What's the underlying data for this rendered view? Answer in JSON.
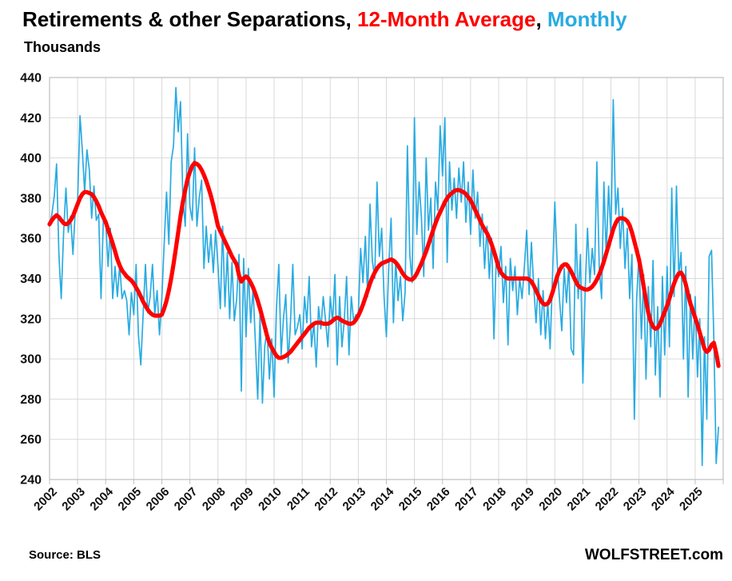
{
  "title": {
    "segments": [
      {
        "text": "Retirements & other Separations, ",
        "color": "#000000"
      },
      {
        "text": "12-Month Average",
        "color": "#ff0000"
      },
      {
        "text": ", ",
        "color": "#000000"
      },
      {
        "text": "Monthly",
        "color": "#29abe2"
      }
    ]
  },
  "subtitle": "Thousands",
  "footer": {
    "source": "Source: BLS",
    "watermark": "WOLFSTREET.com"
  },
  "colors": {
    "grid": "#d9d9d9",
    "border": "#bfbfbf",
    "background": "#ffffff"
  },
  "chart_data": {
    "type": "line",
    "title": "Retirements & other Separations, 12-Month Average, Monthly",
    "ylabel": "Thousands",
    "ylim": [
      240,
      440
    ],
    "ytick_step": 20,
    "yticks": [
      240,
      260,
      280,
      300,
      320,
      340,
      360,
      380,
      400,
      420,
      440
    ],
    "xticks": [
      2002,
      2003,
      2004,
      2005,
      2006,
      2007,
      2008,
      2009,
      2010,
      2011,
      2012,
      2013,
      2014,
      2015,
      2016,
      2017,
      2018,
      2019,
      2020,
      2021,
      2022,
      2023,
      2024,
      2025
    ],
    "x_start_year": 2002,
    "x_frequency": "monthly",
    "grid": true,
    "legend_position": "in-title",
    "series": [
      {
        "name": "Monthly",
        "color": "#29abe2",
        "width": 1.7,
        "values": [
          366,
          372,
          381,
          397,
          352,
          330,
          363,
          385,
          363,
          371,
          352,
          374,
          378,
          421,
          404,
          383,
          404,
          394,
          370,
          386,
          369,
          372,
          330,
          369,
          369,
          346,
          365,
          330,
          346,
          331,
          347,
          330,
          334,
          329,
          312,
          333,
          322,
          347,
          312,
          297,
          322,
          347,
          323,
          331,
          347,
          322,
          334,
          312,
          330,
          357,
          383,
          357,
          398,
          406,
          435,
          413,
          428,
          380,
          366,
          412,
          376,
          369,
          405,
          366,
          380,
          389,
          345,
          366,
          348,
          362,
          343,
          364,
          346,
          325,
          366,
          326,
          353,
          320,
          348,
          319,
          330,
          352,
          284,
          350,
          311,
          345,
          318,
          335,
          308,
          280,
          322,
          278,
          306,
          315,
          290,
          310,
          281,
          325,
          347,
          302,
          320,
          332,
          298,
          318,
          347,
          312,
          316,
          322,
          305,
          331,
          318,
          341,
          306,
          318,
          296,
          326,
          315,
          331,
          319,
          306,
          331,
          318,
          342,
          297,
          331,
          306,
          319,
          341,
          302,
          331,
          319,
          322,
          322,
          355,
          338,
          361,
          331,
          377,
          349,
          340,
          388,
          351,
          365,
          331,
          311,
          345,
          370,
          318,
          349,
          329,
          341,
          319,
          333,
          406,
          352,
          338,
          420,
          362,
          388,
          370,
          341,
          400,
          364,
          380,
          345,
          388,
          374,
          416,
          391,
          420,
          348,
          398,
          374,
          390,
          370,
          395,
          378,
          398,
          368,
          388,
          362,
          394,
          370,
          383,
          356,
          372,
          345,
          366,
          340,
          360,
          310,
          352,
          341,
          356,
          328,
          346,
          307,
          350,
          334,
          346,
          322,
          340,
          330,
          346,
          364,
          332,
          358,
          336,
          318,
          340,
          312,
          334,
          310,
          328,
          305,
          340,
          378,
          348,
          330,
          314,
          345,
          328,
          347,
          305,
          302,
          367,
          330,
          352,
          288,
          335,
          365,
          338,
          355,
          342,
          398,
          345,
          330,
          388,
          352,
          386,
          360,
          429,
          372,
          385,
          355,
          375,
          345,
          365,
          330,
          352,
          270,
          330,
          352,
          310,
          342,
          290,
          336,
          306,
          349,
          292,
          326,
          281,
          341,
          302,
          346,
          306,
          385,
          331,
          386,
          341,
          353,
          300,
          346,
          281,
          332,
          300,
          331,
          291,
          320,
          247,
          311,
          270,
          351,
          354,
          310,
          248,
          266
        ]
      },
      {
        "name": "12-Month Average",
        "color": "#ff0000",
        "width": 5.2,
        "values": [
          367,
          369,
          370.5,
          371.5,
          370.5,
          369,
          367.5,
          367,
          367.5,
          369,
          371,
          374,
          377,
          380,
          382,
          383,
          383,
          382.5,
          382,
          380.5,
          378.5,
          376,
          373,
          370.5,
          368,
          364.5,
          361,
          357.5,
          353.5,
          349.5,
          346.5,
          344,
          342.5,
          341,
          340,
          339,
          337.5,
          335.5,
          333.5,
          331,
          328.5,
          326.5,
          324.5,
          323,
          322,
          321.5,
          321.5,
          321.5,
          322,
          325,
          329,
          334,
          340,
          347,
          355,
          363,
          371,
          378,
          384,
          389.5,
          393,
          396,
          397.5,
          397,
          396,
          394,
          391.5,
          388.5,
          385,
          381,
          376.5,
          371.5,
          366,
          363.5,
          361,
          358.5,
          356,
          353.5,
          351,
          349,
          347,
          341.5,
          338.5,
          340,
          341,
          340,
          338,
          335.5,
          332.5,
          329,
          325,
          320.5,
          316,
          311.5,
          308,
          305.5,
          303.5,
          301.5,
          300.5,
          300.5,
          301,
          301.5,
          302.5,
          303.5,
          305,
          306.5,
          308,
          309.5,
          311,
          312.5,
          314,
          315.5,
          316.5,
          317.5,
          318,
          318,
          318,
          317.5,
          317.5,
          317.5,
          318,
          319,
          320,
          320.5,
          320,
          319,
          318.5,
          318,
          317.5,
          317.5,
          318,
          319.5,
          321.5,
          324,
          327,
          330.5,
          334,
          337.5,
          340.5,
          343,
          345,
          346.5,
          347.5,
          348,
          348.5,
          349,
          349.5,
          349,
          348,
          346.5,
          344.5,
          342.5,
          341,
          340,
          339.5,
          339.5,
          340.5,
          342.5,
          345,
          347.5,
          350.5,
          353.5,
          357,
          360.5,
          364,
          367.5,
          370.5,
          373,
          375.5,
          378,
          380,
          381.5,
          382.5,
          383.5,
          384,
          384,
          383.5,
          383,
          382,
          380.5,
          379,
          376.5,
          374,
          371.5,
          369,
          366.5,
          364.5,
          362.5,
          360,
          357,
          353.5,
          349.5,
          345.5,
          343,
          341.5,
          340.5,
          340,
          340,
          340,
          340,
          340,
          340,
          340,
          340,
          340,
          339.5,
          338.5,
          336.5,
          334,
          331.5,
          329,
          327.5,
          327,
          327.5,
          329.5,
          333,
          337,
          341,
          344,
          346,
          347,
          347,
          345.5,
          343.5,
          341,
          338.5,
          336.5,
          335.5,
          335,
          334.5,
          334.5,
          335,
          336,
          337.5,
          339.5,
          342,
          345,
          348.5,
          352.5,
          356.5,
          360.5,
          364.5,
          367.5,
          369.5,
          370,
          370,
          369.5,
          368.5,
          366.5,
          363,
          358.5,
          354,
          349.5,
          343,
          336,
          329,
          323,
          318.5,
          316,
          315,
          315.5,
          317.5,
          320.5,
          323.5,
          326.5,
          330,
          334,
          337.5,
          340.5,
          342.5,
          343,
          341,
          337,
          332,
          327.5,
          324,
          320.5,
          317,
          313,
          309,
          305,
          303.5,
          304.5,
          307,
          308,
          303,
          296.5
        ]
      }
    ]
  }
}
